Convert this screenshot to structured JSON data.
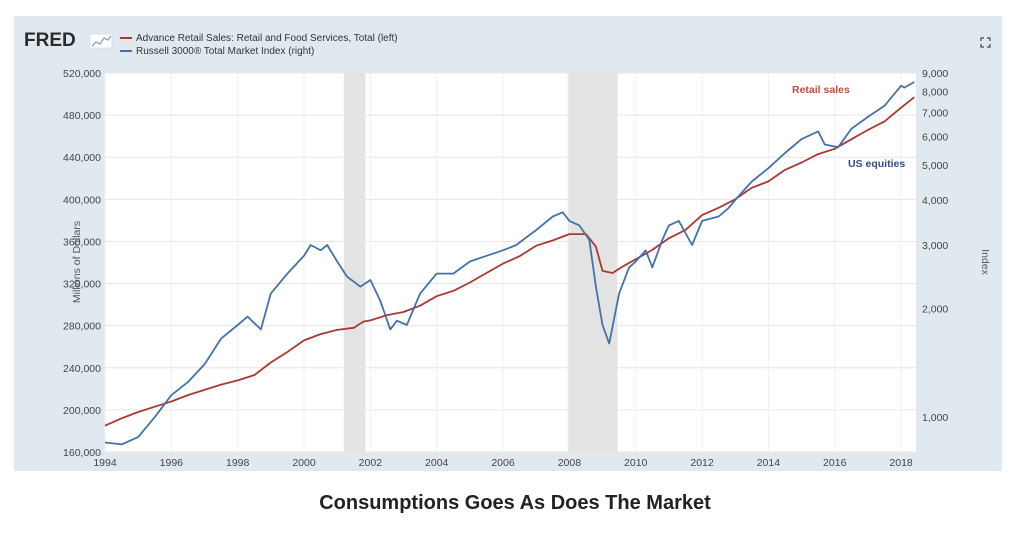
{
  "header": {
    "logo": "FRED",
    "logo_icon": "chart-line-icon",
    "fullscreen_icon": "fullscreen-icon"
  },
  "caption": "Consumptions Goes As Does The Market",
  "chart_data": {
    "type": "line",
    "title": "",
    "xlabel": "",
    "ylabel_left": "Millions of Dollars",
    "ylabel_right": "Index",
    "xlim": [
      1994.0,
      2018.45
    ],
    "ylim_left": [
      160000,
      520000
    ],
    "ylim_right": [
      800,
      9000
    ],
    "right_axis_scale": "log",
    "grid": true,
    "legend_position": "top-left",
    "x_ticks": [
      "1994",
      "1996",
      "1998",
      "2000",
      "2002",
      "2004",
      "2006",
      "2008",
      "2010",
      "2012",
      "2014",
      "2016",
      "2018"
    ],
    "y_left_ticks": [
      "160,000",
      "200,000",
      "240,000",
      "280,000",
      "320,000",
      "360,000",
      "400,000",
      "440,000",
      "480,000",
      "520,000"
    ],
    "y_right_ticks": [
      "1,000",
      "2,000",
      "3,000",
      "4,000",
      "5,000",
      "6,000",
      "7,000",
      "8,000",
      "9,000"
    ],
    "recessions": [
      [
        2001.2,
        2001.85
      ],
      [
        2007.95,
        2009.45
      ]
    ],
    "annotations": [
      {
        "text": "Retail sales",
        "color": "#b5523a"
      },
      {
        "text": "US equities",
        "color": "#2e4d8a"
      }
    ],
    "series": [
      {
        "name": "Advance Retail Sales: Retail and Food Services, Total (left)",
        "axis": "left",
        "color": "#a83a32",
        "x": [
          1994.0,
          1994.5,
          1995.0,
          1995.5,
          1996.0,
          1996.5,
          1997.0,
          1997.5,
          1998.0,
          1998.5,
          1999.0,
          1999.5,
          2000.0,
          2000.5,
          2001.0,
          2001.5,
          2001.8,
          2002.0,
          2002.5,
          2003.0,
          2003.5,
          2004.0,
          2004.5,
          2005.0,
          2005.5,
          2006.0,
          2006.5,
          2007.0,
          2007.5,
          2008.0,
          2008.5,
          2008.8,
          2009.0,
          2009.3,
          2009.6,
          2010.0,
          2010.5,
          2011.0,
          2011.5,
          2012.0,
          2012.5,
          2013.0,
          2013.5,
          2014.0,
          2014.5,
          2015.0,
          2015.5,
          2016.0,
          2016.5,
          2017.0,
          2017.5,
          2018.0,
          2018.4
        ],
        "values": [
          185000,
          192000,
          198000,
          203000,
          208000,
          214000,
          219000,
          224000,
          228000,
          233000,
          245000,
          255000,
          266000,
          272000,
          276000,
          278000,
          284000,
          285000,
          290000,
          293000,
          299000,
          308000,
          313000,
          321000,
          330000,
          339000,
          346000,
          356000,
          361000,
          367000,
          367000,
          355000,
          332000,
          330000,
          336000,
          343000,
          352000,
          363000,
          371000,
          385000,
          392000,
          400000,
          411000,
          417000,
          428000,
          435000,
          443000,
          448000,
          457000,
          466000,
          474000,
          487000,
          497000
        ]
      },
      {
        "name": "Russell 3000® Total Market Index (right)",
        "axis": "right",
        "color": "#4472a8",
        "x": [
          1994.0,
          1994.5,
          1995.0,
          1995.5,
          1996.0,
          1996.5,
          1997.0,
          1997.5,
          1998.0,
          1998.3,
          1998.7,
          1999.0,
          1999.5,
          2000.0,
          2000.2,
          2000.5,
          2000.7,
          2001.0,
          2001.3,
          2001.7,
          2002.0,
          2002.3,
          2002.6,
          2002.8,
          2003.1,
          2003.5,
          2004.0,
          2004.5,
          2005.0,
          2005.5,
          2006.0,
          2006.4,
          2006.8,
          2007.0,
          2007.5,
          2007.8,
          2008.0,
          2008.3,
          2008.6,
          2008.8,
          2009.0,
          2009.2,
          2009.5,
          2009.8,
          2010.0,
          2010.3,
          2010.5,
          2010.8,
          2011.0,
          2011.3,
          2011.7,
          2012.0,
          2012.5,
          2012.8,
          2013.0,
          2013.5,
          2014.0,
          2014.5,
          2015.0,
          2015.5,
          2015.7,
          2016.1,
          2016.5,
          2017.0,
          2017.5,
          2018.0,
          2018.1,
          2018.4
        ],
        "values": [
          850,
          840,
          880,
          1000,
          1150,
          1250,
          1400,
          1650,
          1800,
          1900,
          1750,
          2200,
          2500,
          2800,
          3000,
          2900,
          3000,
          2700,
          2450,
          2300,
          2400,
          2100,
          1750,
          1850,
          1800,
          2200,
          2500,
          2500,
          2700,
          2800,
          2900,
          3000,
          3200,
          3300,
          3600,
          3700,
          3500,
          3400,
          3100,
          2300,
          1800,
          1600,
          2200,
          2600,
          2700,
          2900,
          2600,
          3100,
          3400,
          3500,
          3000,
          3500,
          3600,
          3800,
          4000,
          4500,
          4900,
          5400,
          5900,
          6200,
          5700,
          5600,
          6300,
          6800,
          7300,
          8300,
          8200,
          8500
        ]
      }
    ]
  }
}
